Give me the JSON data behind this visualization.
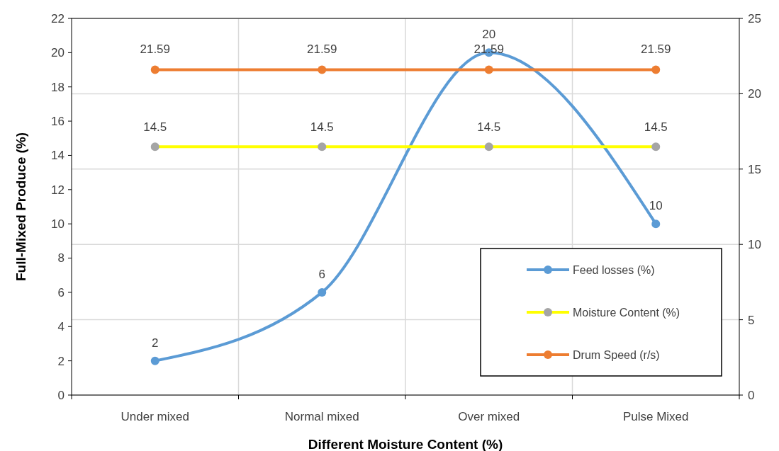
{
  "chart_data": {
    "type": "line",
    "xlabel": "Different Moisture Content (%)",
    "ylabel": "Full-Mixed Produce (%)",
    "categories": [
      "Under mixed",
      "Normal mixed",
      "Over mixed",
      "Pulse Mixed"
    ],
    "ylim": [
      0,
      22
    ],
    "yticks": [
      0,
      2,
      4,
      6,
      8,
      10,
      12,
      14,
      16,
      18,
      20,
      22
    ],
    "y2lim": [
      0,
      25
    ],
    "y2ticks": [
      0,
      5,
      10,
      15,
      20,
      25
    ],
    "grid": true,
    "legend": "bottom right",
    "marker": "circle",
    "line_style": "solid",
    "data_labels": true,
    "series": [
      {
        "name": "Feed losses (%)",
        "color": "#5b9bd5",
        "values": [
          2,
          6,
          20,
          10
        ]
      },
      {
        "name": "Moisture Content (%)",
        "color": "#ffff00",
        "colors": [
          "#a5a5a5",
          "#a5a5a5",
          "#a5a5a5",
          "#a5a5a5"
        ],
        "values": [
          14.5,
          14.5,
          14.5,
          14.5
        ]
      },
      {
        "name": "Drum Speed (r/s)",
        "color": "#ed7d31",
        "axis": "y2",
        "values": [
          21.59,
          21.59,
          21.59,
          21.59
        ]
      }
    ]
  }
}
